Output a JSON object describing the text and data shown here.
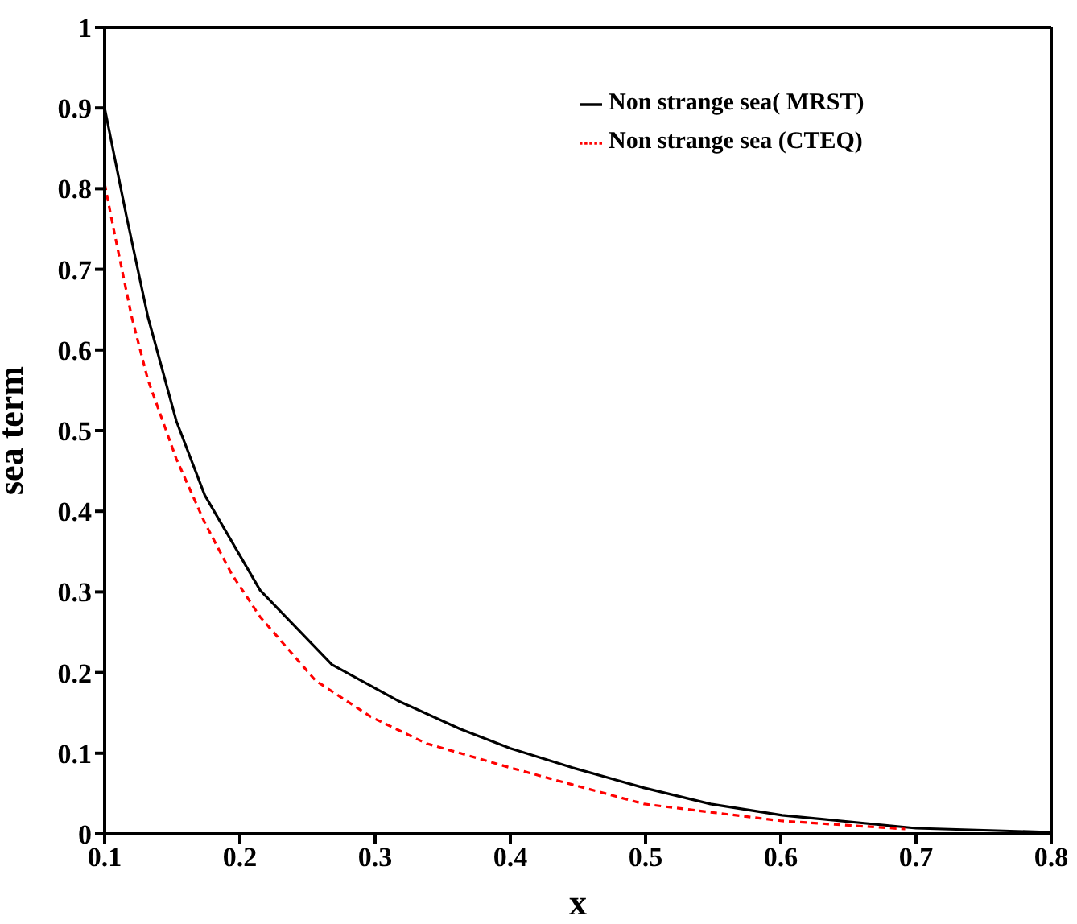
{
  "chart_data": {
    "type": "line",
    "xlabel": "x",
    "ylabel": "sea term",
    "xlim": [
      0.1,
      0.8
    ],
    "xticks": [
      0.1,
      0.2,
      0.3,
      0.4,
      0.5,
      0.6,
      0.7,
      0.8
    ],
    "ylim": [
      0,
      1
    ],
    "yticks": [
      0,
      0.1,
      0.2,
      0.3,
      0.4,
      0.5,
      0.6,
      0.7,
      0.8,
      0.9,
      1
    ],
    "legend": "top right",
    "marker": "none",
    "series": [
      {
        "name": "Non strange sea( MRST)",
        "color": "#000000",
        "line_style": "solid",
        "x": [
          0.1,
          0.116,
          0.132,
          0.153,
          0.174,
          0.215,
          0.268,
          0.317,
          0.363,
          0.4,
          0.446,
          0.499,
          0.548,
          0.601,
          0.7,
          0.8
        ],
        "values": [
          0.9,
          0.767,
          0.641,
          0.512,
          0.42,
          0.302,
          0.21,
          0.165,
          0.13,
          0.106,
          0.082,
          0.057,
          0.037,
          0.023,
          0.007,
          0.002
        ]
      },
      {
        "name": "Non strange sea (CTEQ)",
        "color": "#ff0000",
        "line_style": "dashed",
        "x": [
          0.1,
          0.107,
          0.12,
          0.132,
          0.153,
          0.174,
          0.194,
          0.215,
          0.256,
          0.297,
          0.338,
          0.363,
          0.4,
          0.446,
          0.499,
          0.601,
          0.692
        ],
        "values": [
          0.806,
          0.747,
          0.641,
          0.563,
          0.465,
          0.386,
          0.322,
          0.269,
          0.19,
          0.145,
          0.112,
          0.1,
          0.082,
          0.061,
          0.037,
          0.016,
          0.006
        ]
      }
    ]
  }
}
